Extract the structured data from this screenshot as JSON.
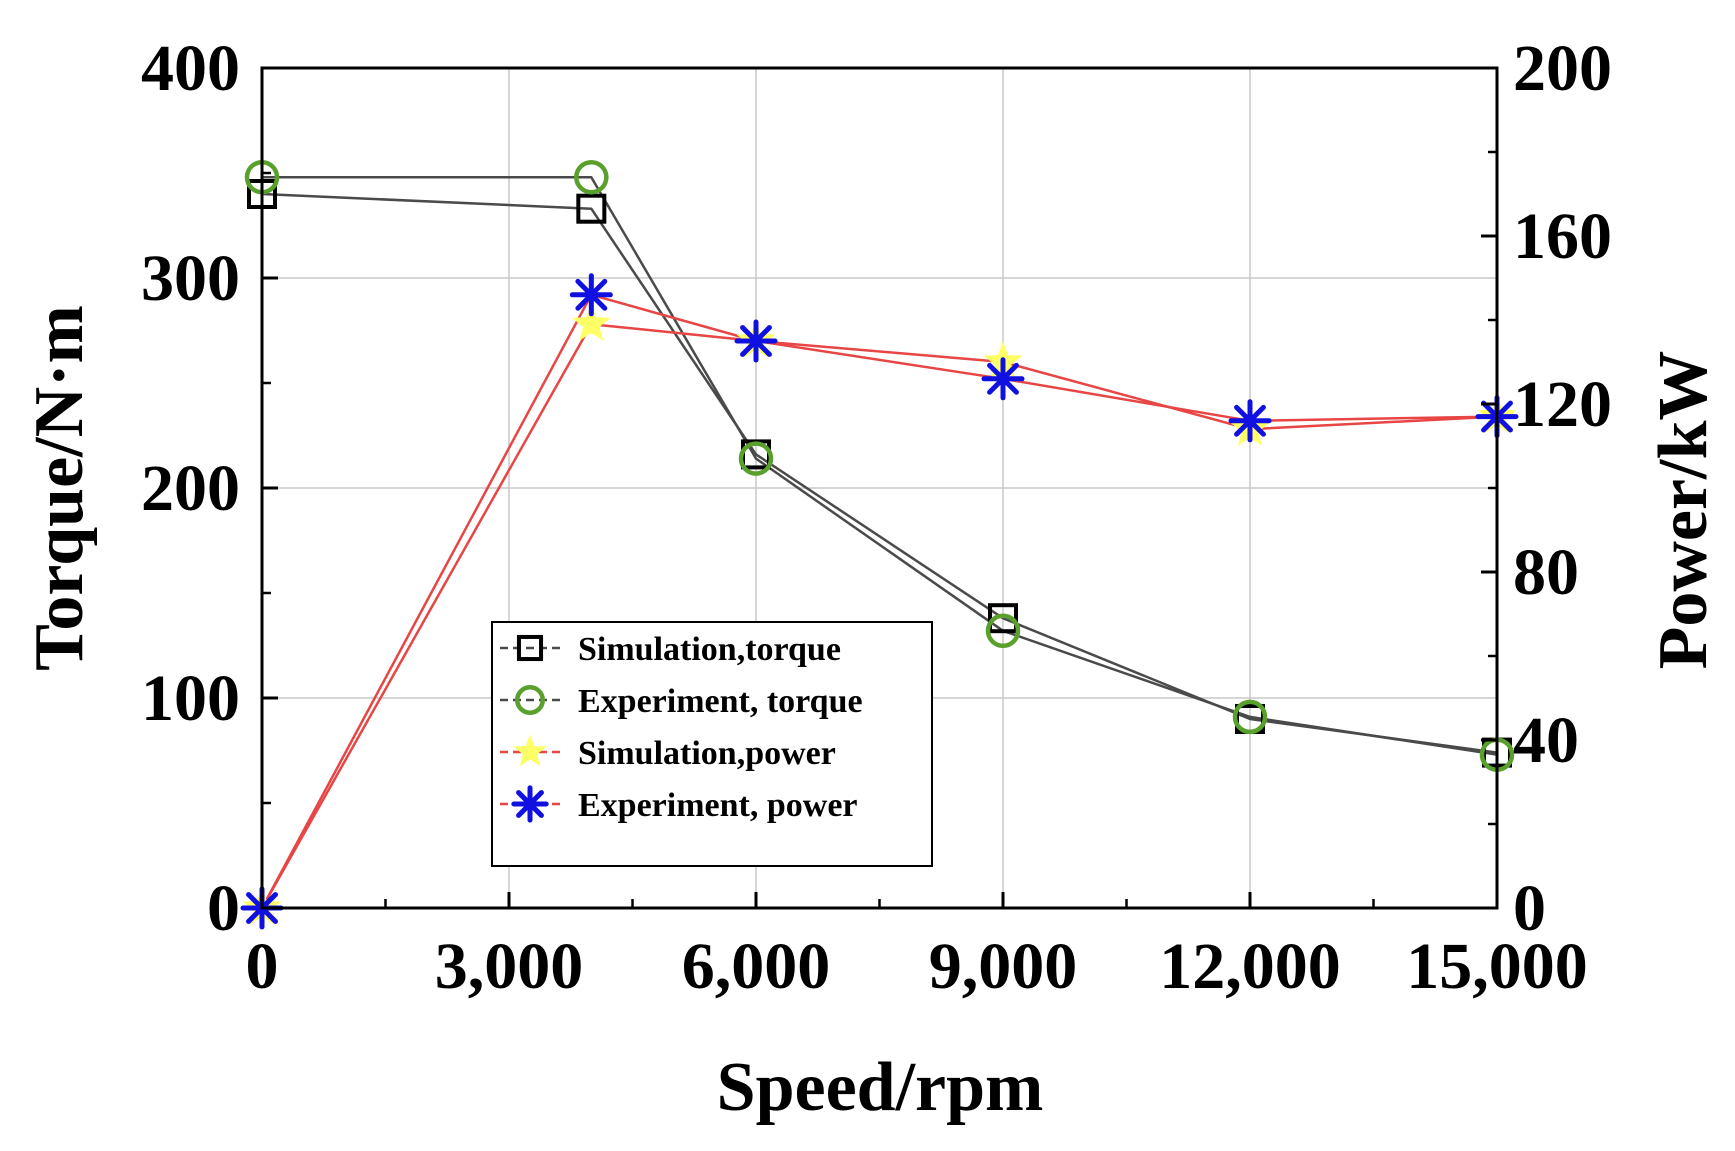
{
  "chart_data": {
    "type": "line",
    "title": "",
    "xlabel": "Speed/rpm",
    "ylabel_left": "Torque/N·m",
    "ylabel_right": "Power/kW",
    "xlim": [
      0,
      15000
    ],
    "ylim_left": [
      0,
      400
    ],
    "ylim_right": [
      0,
      200
    ],
    "x_ticks": [
      0,
      3000,
      6000,
      9000,
      12000,
      15000
    ],
    "x_tick_labels": [
      "0",
      "3,000",
      "6,000",
      "9,000",
      "12,000",
      "15,000"
    ],
    "y_left_ticks": [
      0,
      100,
      200,
      300,
      400
    ],
    "y_left_tick_labels": [
      "0",
      "100",
      "200",
      "300",
      "400"
    ],
    "y_right_ticks": [
      0,
      40,
      80,
      120,
      160,
      200
    ],
    "y_right_tick_labels": [
      "0",
      "40",
      "80",
      "120",
      "160",
      "200"
    ],
    "grid": true,
    "legend_position": "lower-center",
    "series": [
      {
        "name": "Simulation,torque",
        "axis": "left",
        "line_color": "#4a4a4a",
        "marker": "square",
        "marker_color": "#000000",
        "x": [
          0,
          4000,
          6000,
          9000,
          12000,
          15000
        ],
        "y": [
          340,
          333,
          216,
          138,
          90,
          74
        ]
      },
      {
        "name": "Experiment, torque",
        "axis": "left",
        "line_color": "#4a4a4a",
        "marker": "circle",
        "marker_color": "#5aa02c",
        "x": [
          0,
          4000,
          6000,
          9000,
          12000,
          15000
        ],
        "y": [
          348,
          348,
          214,
          132,
          91,
          73
        ]
      },
      {
        "name": "Simulation,power",
        "axis": "right",
        "line_color": "#e84545",
        "marker": "star",
        "marker_color": "#ffff66",
        "x": [
          0,
          4000,
          6000,
          9000,
          12000,
          15000
        ],
        "y": [
          0,
          139,
          135,
          130,
          114,
          117
        ]
      },
      {
        "name": "Experiment, power",
        "axis": "right",
        "line_color": "#e84545",
        "marker": "asterisk",
        "marker_color": "#1010e0",
        "x": [
          0,
          4000,
          6000,
          9000,
          12000,
          15000
        ],
        "y": [
          0,
          146,
          135,
          126,
          116,
          117
        ]
      }
    ]
  }
}
